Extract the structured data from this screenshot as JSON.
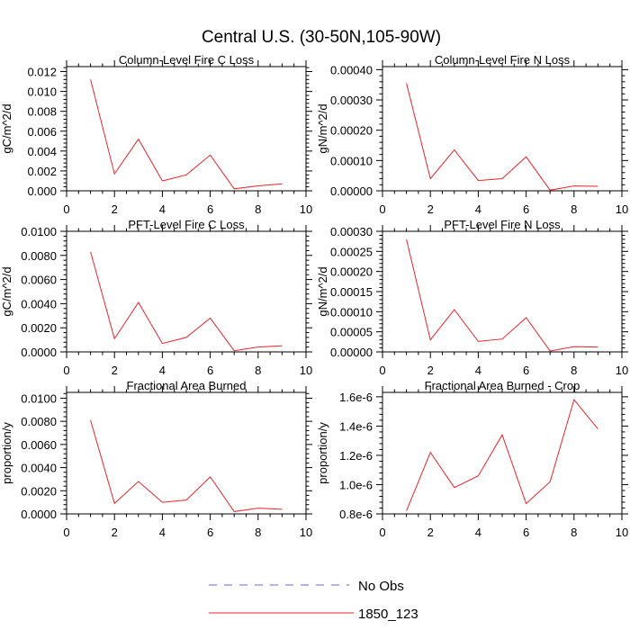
{
  "figure": {
    "title": "Central U.S. (30-50N,105-90W)"
  },
  "legend": {
    "entries": [
      {
        "label": "No Obs",
        "color": "#6a6ad0",
        "dash": "dashed"
      },
      {
        "label": "1850_123",
        "color": "#e8262a",
        "dash": "solid"
      }
    ]
  },
  "chart_data": [
    {
      "type": "line",
      "title": "Column-Level Fire C Loss",
      "ylabel": "gC/m^2/d",
      "xlim": [
        0,
        10
      ],
      "ylim": [
        0,
        0.0125
      ],
      "xticks": [
        0,
        2,
        4,
        6,
        8,
        10
      ],
      "yticks": [
        0,
        0.002,
        0.004,
        0.006,
        0.008,
        0.01,
        0.012
      ],
      "yticklabels": [
        "0.000",
        "0.002",
        "0.004",
        "0.006",
        "0.008",
        "0.010",
        "0.012"
      ],
      "x": [
        1,
        2,
        3,
        4,
        5,
        6,
        7,
        8,
        9
      ],
      "series": [
        {
          "name": "1850_123",
          "values": [
            0.0112,
            0.0017,
            0.0052,
            0.001,
            0.0016,
            0.0036,
            0.0002,
            0.0005,
            0.0007
          ]
        }
      ]
    },
    {
      "type": "line",
      "title": "Column-Level Fire N Loss",
      "ylabel": "gN/m^2/d",
      "xlim": [
        0,
        10
      ],
      "ylim": [
        0,
        0.00041
      ],
      "xticks": [
        0,
        2,
        4,
        6,
        8,
        10
      ],
      "yticks": [
        0,
        0.0001,
        0.0002,
        0.0003,
        0.0004
      ],
      "yticklabels": [
        "0.00000",
        "0.00010",
        "0.00020",
        "0.00030",
        "0.00040"
      ],
      "x": [
        1,
        2,
        3,
        4,
        5,
        6,
        7,
        8,
        9
      ],
      "series": [
        {
          "name": "1850_123",
          "values": [
            0.000355,
            4e-05,
            0.000135,
            3.4e-05,
            4e-05,
            0.000112,
            2e-06,
            1.6e-05,
            1.5e-05
          ]
        }
      ]
    },
    {
      "type": "line",
      "title": "PFT-Level Fire C Loss",
      "ylabel": "gC/m^2/d",
      "xlim": [
        0,
        10
      ],
      "ylim": [
        0,
        0.01
      ],
      "xticks": [
        0,
        2,
        4,
        6,
        8,
        10
      ],
      "yticks": [
        0,
        0.002,
        0.004,
        0.006,
        0.008,
        0.01
      ],
      "yticklabels": [
        "0.0000",
        "0.0020",
        "0.0040",
        "0.0060",
        "0.0080",
        "0.0100"
      ],
      "x": [
        1,
        2,
        3,
        4,
        5,
        6,
        7,
        8,
        9
      ],
      "series": [
        {
          "name": "1850_123",
          "values": [
            0.0083,
            0.0011,
            0.0041,
            0.0007,
            0.0012,
            0.0028,
            0.0001,
            0.0004,
            0.0005
          ]
        }
      ]
    },
    {
      "type": "line",
      "title": "PFT-Level Fire N Loss",
      "ylabel": "gN/m^2/d",
      "xlim": [
        0,
        10
      ],
      "ylim": [
        0,
        0.0003
      ],
      "xticks": [
        0,
        2,
        4,
        6,
        8,
        10
      ],
      "yticks": [
        0,
        5e-05,
        0.0001,
        0.00015,
        0.0002,
        0.00025,
        0.0003
      ],
      "yticklabels": [
        "0.00000",
        "0.00005",
        "0.00010",
        "0.00015",
        "0.00020",
        "0.00025",
        "0.00030"
      ],
      "x": [
        1,
        2,
        3,
        4,
        5,
        6,
        7,
        8,
        9
      ],
      "series": [
        {
          "name": "1850_123",
          "values": [
            0.00028,
            3e-05,
            0.000105,
            2.6e-05,
            3.2e-05,
            8.5e-05,
            2e-06,
            1.3e-05,
            1.2e-05
          ]
        }
      ]
    },
    {
      "type": "line",
      "title": "Fractional Area Burned",
      "ylabel": "proportion/y",
      "xlim": [
        0,
        10
      ],
      "ylim": [
        0,
        0.0105
      ],
      "xticks": [
        0,
        2,
        4,
        6,
        8,
        10
      ],
      "yticks": [
        0,
        0.002,
        0.004,
        0.006,
        0.008,
        0.01
      ],
      "yticklabels": [
        "0.0000",
        "0.0020",
        "0.0040",
        "0.0060",
        "0.0080",
        "0.0100"
      ],
      "x": [
        1,
        2,
        3,
        4,
        5,
        6,
        7,
        8,
        9
      ],
      "series": [
        {
          "name": "1850_123",
          "values": [
            0.0081,
            0.0009,
            0.0028,
            0.001,
            0.0012,
            0.0032,
            0.0002,
            0.0005,
            0.0004
          ]
        }
      ]
    },
    {
      "type": "line",
      "title": "Fractional Area Burned - Crop",
      "ylabel": "proportion/y",
      "xlim": [
        0,
        10
      ],
      "ylim": [
        8e-07,
        1.63e-06
      ],
      "xticks": [
        0,
        2,
        4,
        6,
        8,
        10
      ],
      "yticks": [
        8e-07,
        1e-06,
        1.2e-06,
        1.4e-06,
        1.6e-06
      ],
      "yticklabels": [
        "0.8e-6",
        "1.0e-6",
        "1.2e-6",
        "1.4e-6",
        "1.6e-6"
      ],
      "x": [
        1,
        2,
        3,
        4,
        5,
        6,
        7,
        8,
        9
      ],
      "series": [
        {
          "name": "1850_123",
          "values": [
            8.2e-07,
            1.22e-06,
            9.8e-07,
            1.06e-06,
            1.34e-06,
            8.7e-07,
            1.02e-06,
            1.58e-06,
            1.38e-06
          ]
        }
      ]
    }
  ]
}
